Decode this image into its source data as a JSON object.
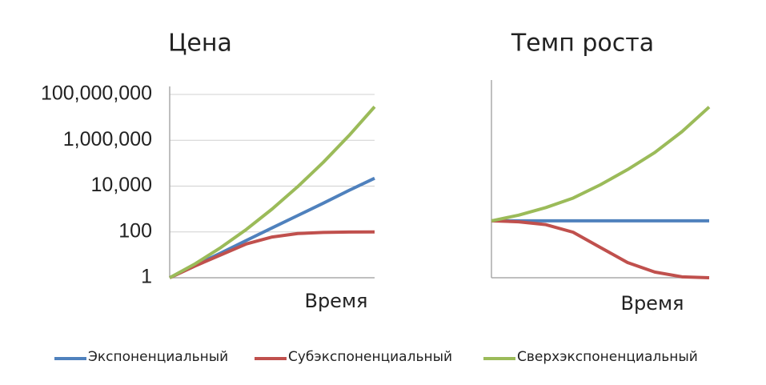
{
  "chart_data": [
    {
      "type": "line",
      "title": "Цена",
      "x_label": "Время",
      "log_scale": true,
      "grid": true,
      "categories": [
        null,
        null,
        null,
        null,
        null,
        null,
        null,
        null,
        null
      ],
      "ylim": [
        1,
        100000000
      ],
      "yticks": [
        1,
        100,
        {
          "value": 10000,
          "label": "10,000"
        },
        {
          "value": 1000000,
          "label": "1,000,000"
        },
        {
          "value": 100000000,
          "label": "100,000,000"
        }
      ],
      "series": [
        {
          "name": "Экспоненциальный",
          "color": "#4f81bd",
          "values": [
            1,
            3.5,
            12,
            43,
            150,
            520,
            1800,
            6500,
            22000
          ]
        },
        {
          "name": "Субэкспоненциальный",
          "color": "#c0504d",
          "values": [
            1,
            3.3,
            10,
            30,
            60,
            85,
            95,
            99,
            100
          ]
        },
        {
          "name": "Сверхэкспоненциальный",
          "color": "#9bbb59",
          "values": [
            1,
            4.1,
            21,
            130,
            1000,
            9500,
            110000,
            1600000,
            29000000
          ]
        }
      ]
    },
    {
      "type": "line",
      "title": "Темп роста",
      "x_label": "Время",
      "log_scale": false,
      "grid": false,
      "categories": [
        null,
        null,
        null,
        null,
        null,
        null,
        null,
        null,
        null
      ],
      "ylim": [
        0,
        10
      ],
      "series": [
        {
          "color": "#4f81bd",
          "values": [
            3,
            3,
            3,
            3,
            3,
            3,
            3,
            3,
            3
          ]
        },
        {
          "color": "#c0504d",
          "values": [
            3,
            2.95,
            2.8,
            2.4,
            1.6,
            0.8,
            0.3,
            0.05,
            0
          ]
        },
        {
          "color": "#9bbb59",
          "values": [
            3,
            3.3,
            3.7,
            4.2,
            4.9,
            5.7,
            6.6,
            7.7,
            9
          ]
        }
      ]
    }
  ]
}
